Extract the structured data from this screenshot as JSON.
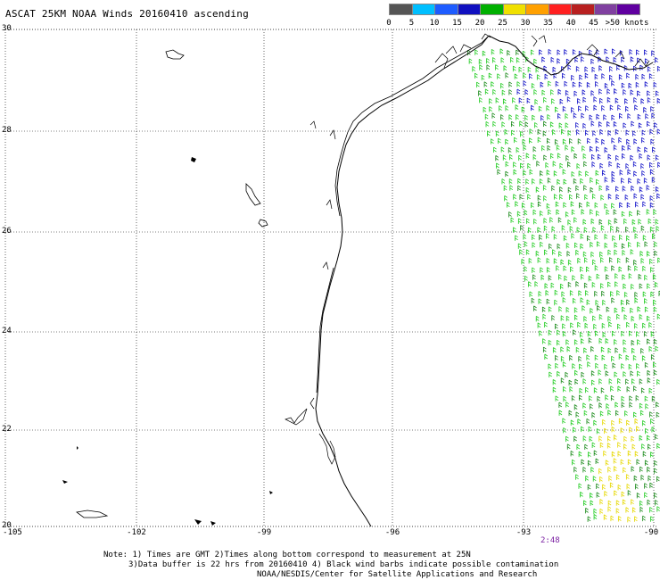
{
  "title": "ASCAT 25KM NOAA Winds 20160410 ascending",
  "legend": {
    "labels": [
      "0",
      "5",
      "10",
      "15",
      "20",
      "25",
      "30",
      "35",
      "40",
      "45",
      ">50 knots"
    ],
    "colors": [
      "#555555",
      "#00bfff",
      "#1e5cff",
      "#1010c0",
      "#00b000",
      "#f0e000",
      "#ffa000",
      "#ff2020",
      "#b82020",
      "#8040a0",
      "#6000a0"
    ]
  },
  "map": {
    "lat_labels": [
      "30",
      "28",
      "26",
      "24",
      "22",
      "20"
    ],
    "lon_labels": [
      "-105",
      "-102",
      "-99",
      "-96",
      "-93",
      "-90"
    ],
    "time_label": "2:48",
    "wind_colors": {
      "light": "#22cc22",
      "medium": "#1a8a1a",
      "strong": "#1010c8",
      "yellow": "#e6d800",
      "contam": "#000000"
    }
  },
  "notes": [
    "Note: 1) Times are GMT 2)Times along bottom correspond to measurement at 25N",
    "3)Data buffer is 22 hrs from 20160410 4) Black wind barbs indicate possible contamination",
    "NOAA/NESDIS/Center for Satellite Applications and Research"
  ]
}
